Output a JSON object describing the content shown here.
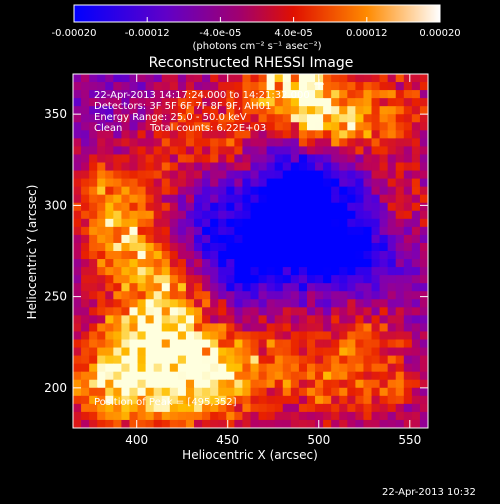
{
  "chart_data": {
    "type": "heatmap",
    "title": "Reconstructed RHESSI Image",
    "xlabel": "Heliocentric X (arcsec)",
    "ylabel": "Heliocentric Y (arcsec)",
    "xlim": [
      365,
      560
    ],
    "ylim": [
      178,
      372
    ],
    "x_ticks": [
      "400",
      "450",
      "500",
      "550"
    ],
    "y_ticks": [
      "200",
      "250",
      "300",
      "350"
    ],
    "colorbar": {
      "ticks": [
        "-0.00020",
        "-0.00012",
        "-4.0e-05",
        "4.0e-05",
        "0.00012",
        "0.00020"
      ],
      "unit_label": "(photons cm⁻² s⁻¹ asec⁻²)",
      "range": [
        -0.0002,
        0.0002
      ],
      "colors": [
        "#0000ff",
        "#4a00e0",
        "#8000b0",
        "#b80060",
        "#e82000",
        "#ff7000",
        "#ffc000",
        "#ffffe0"
      ]
    },
    "annotations": {
      "time": "22-Apr-2013 14:17:24.000 to 14:21:32.000",
      "detectors": "Detectors: 3F 5F 6F 7F 8F 9F, AH01",
      "energy": "Energy Range: 25.0 - 50.0 keV",
      "method": "Clean",
      "counts": "Total counts: 6.22E+03",
      "peak": "Position of Peak = [495,352]"
    },
    "footer_timestamp": "22-Apr-2013 10:32"
  }
}
